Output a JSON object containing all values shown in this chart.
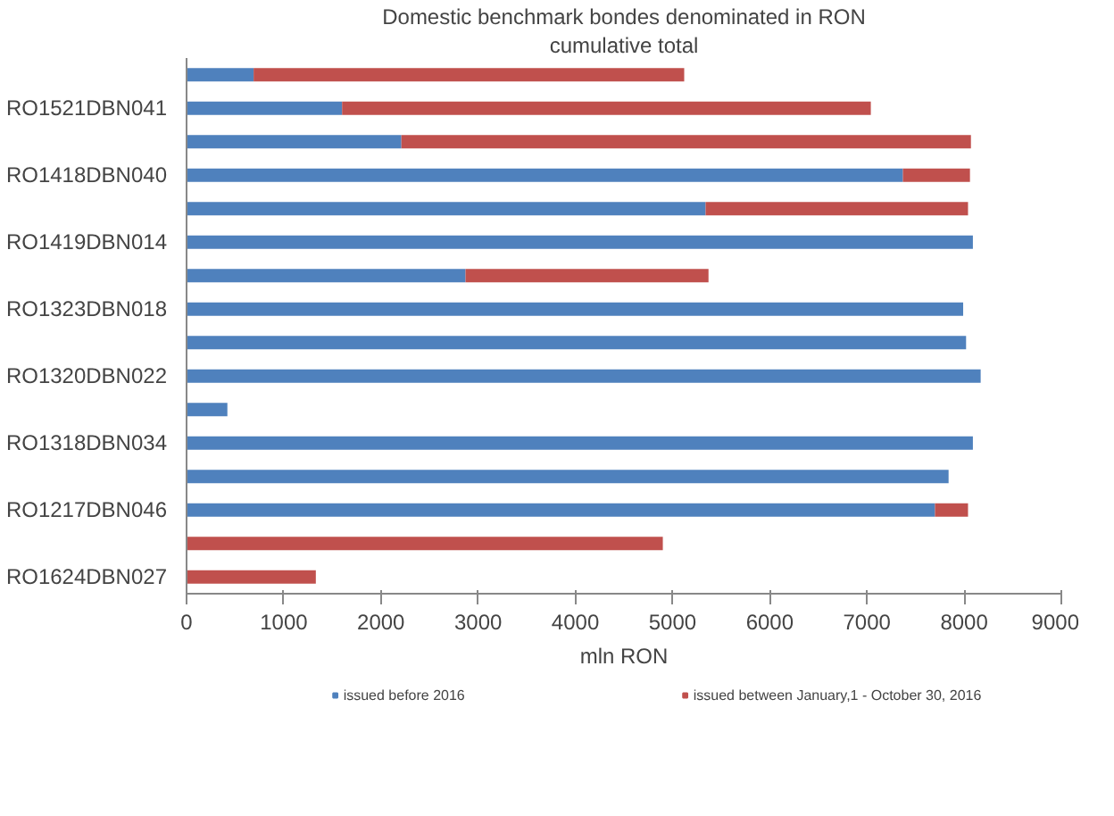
{
  "chart_data": {
    "type": "bar",
    "orientation": "horizontal",
    "stacked": true,
    "title": "Domestic benchmark bondes denominated in RON",
    "subtitle": "cumulative total",
    "xlabel": "mln RON",
    "categories": [
      null,
      "RO1521DBN041",
      null,
      "RO1418DBN040",
      null,
      "RO1419DBN014",
      null,
      "RO1323DBN018",
      null,
      "RO1320DBN022",
      null,
      "RO1318DBN034",
      null,
      "RO1217DBN046",
      null,
      "RO1624DBN027"
    ],
    "series": [
      {
        "name": "issued before 2016",
        "color": "#4f81bd",
        "values": [
          690,
          1600,
          2210,
          7370,
          5340,
          8090,
          2870,
          7990,
          8020,
          8170,
          420,
          8090,
          7840,
          7700,
          null,
          null
        ]
      },
      {
        "name": "issued between January,1 - October 30, 2016",
        "color": "#c0504d",
        "values": [
          4430,
          5440,
          5860,
          690,
          2700,
          null,
          2500,
          null,
          null,
          null,
          null,
          null,
          null,
          340,
          4900,
          1330
        ]
      }
    ],
    "xlim": [
      0,
      9000
    ],
    "xticks": [
      0,
      1000,
      2000,
      3000,
      4000,
      5000,
      6000,
      7000,
      8000,
      9000
    ],
    "grid": false,
    "legend": "bottom"
  }
}
